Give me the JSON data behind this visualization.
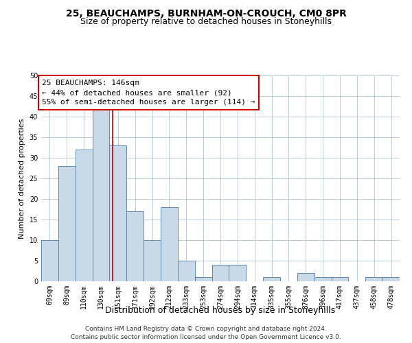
{
  "title": "25, BEAUCHAMPS, BURNHAM-ON-CROUCH, CM0 8PR",
  "subtitle": "Size of property relative to detached houses in Stoneyhills",
  "xlabel": "Distribution of detached houses by size in Stoneyhills",
  "ylabel": "Number of detached properties",
  "categories": [
    "69sqm",
    "89sqm",
    "110sqm",
    "130sqm",
    "151sqm",
    "171sqm",
    "192sqm",
    "212sqm",
    "233sqm",
    "253sqm",
    "274sqm",
    "294sqm",
    "314sqm",
    "335sqm",
    "355sqm",
    "376sqm",
    "396sqm",
    "417sqm",
    "437sqm",
    "458sqm",
    "478sqm"
  ],
  "values": [
    10,
    28,
    32,
    42,
    33,
    17,
    10,
    18,
    5,
    1,
    4,
    4,
    0,
    1,
    0,
    2,
    1,
    1,
    0,
    1,
    1
  ],
  "bar_color": "#c9d9e8",
  "bar_edge_color": "#5a8ab5",
  "red_line_x": 3.68,
  "annotation_text": "25 BEAUCHAMPS: 146sqm\n← 44% of detached houses are smaller (92)\n55% of semi-detached houses are larger (114) →",
  "annotation_box_facecolor": "#ffffff",
  "annotation_box_edgecolor": "#cc0000",
  "ylim": [
    0,
    50
  ],
  "yticks": [
    0,
    5,
    10,
    15,
    20,
    25,
    30,
    35,
    40,
    45,
    50
  ],
  "grid_color": "#b0c4d8",
  "footer_line1": "Contains HM Land Registry data © Crown copyright and database right 2024.",
  "footer_line2": "Contains public sector information licensed under the Open Government Licence v3.0.",
  "title_fontsize": 10,
  "subtitle_fontsize": 9,
  "xlabel_fontsize": 9,
  "ylabel_fontsize": 8,
  "tick_fontsize": 7,
  "annotation_fontsize": 8,
  "footer_fontsize": 6.5
}
